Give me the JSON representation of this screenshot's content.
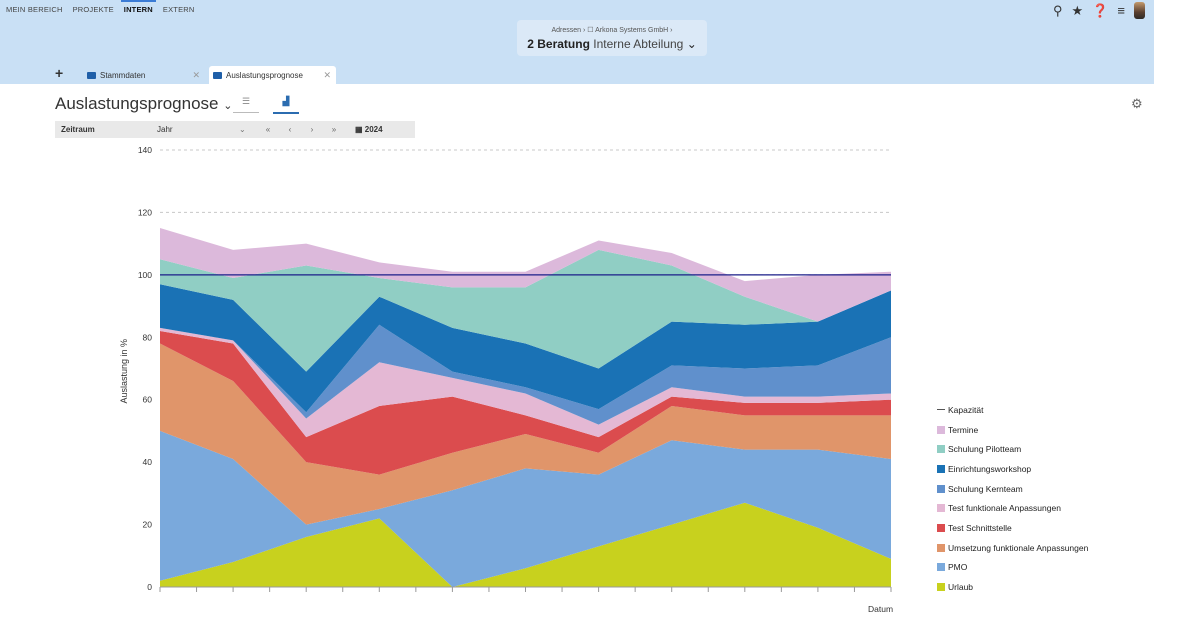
{
  "nav": {
    "items": [
      "MEIN BEREICH",
      "PROJEKTE",
      "INTERN",
      "EXTERN"
    ],
    "active": "INTERN"
  },
  "context": {
    "breadcrumb": "Adressen  ›  ☐ Arkona Systems GmbH  ›",
    "code": "2 Beratung",
    "name": "Interne Abteilung"
  },
  "tabs": [
    {
      "label": "Stammdaten"
    },
    {
      "label": "Auslastungsprognose"
    }
  ],
  "page": {
    "title": "Auslastungsprognose"
  },
  "filter": {
    "label": "Zeitraum",
    "value": "Jahr",
    "year": "2024"
  },
  "chart_data": {
    "type": "area",
    "stacked": true,
    "ylabel": "Auslastung in %",
    "xlabel": "Datum",
    "ylim": [
      0,
      140
    ],
    "yticks": [
      0,
      20,
      40,
      60,
      80,
      100,
      120,
      140
    ],
    "grid": true,
    "legend_position": "right",
    "capacity_line": {
      "name": "Kapazität",
      "value": 100,
      "color": "#1b1f8a"
    },
    "x": [
      1,
      2,
      3,
      4,
      5,
      6,
      7,
      8,
      9,
      10,
      11
    ],
    "series": [
      {
        "name": "Urlaub",
        "color": "#c8d11e",
        "values": [
          2,
          8,
          16,
          22,
          0,
          6,
          13,
          20,
          27,
          19,
          9
        ]
      },
      {
        "name": "PMO",
        "color": "#7aa9dc",
        "values": [
          48,
          33,
          4,
          3,
          31,
          32,
          23,
          27,
          17,
          25,
          32
        ]
      },
      {
        "name": "Umsetzung funktionale Anpassungen",
        "color": "#e0956a",
        "values": [
          28,
          25,
          20,
          11,
          12,
          11,
          7,
          11,
          11,
          11,
          14
        ]
      },
      {
        "name": "Test Schnittstelle",
        "color": "#db4c4e",
        "values": [
          4,
          12,
          8,
          22,
          18,
          6,
          5,
          3,
          4,
          4,
          5
        ]
      },
      {
        "name": "Test funktionale Anpassungen",
        "color": "#e4b8d4",
        "values": [
          1,
          1,
          6,
          14,
          6,
          7,
          4,
          3,
          2,
          2,
          2
        ]
      },
      {
        "name": "Schulung Kernteam",
        "color": "#6090cc",
        "values": [
          0,
          0,
          2,
          12,
          2,
          2,
          5,
          7,
          9,
          10,
          18
        ]
      },
      {
        "name": "Einrichtungsworkshop",
        "color": "#1a72b5",
        "values": [
          14,
          13,
          13,
          9,
          14,
          14,
          13,
          14,
          14,
          14,
          15
        ]
      },
      {
        "name": "Schulung Pilotteam",
        "color": "#90cec4",
        "values": [
          8,
          7,
          34,
          6,
          13,
          18,
          38,
          18,
          9,
          0,
          0
        ]
      },
      {
        "name": "Termine",
        "color": "#dcb9db",
        "values": [
          10,
          9,
          7,
          5,
          5,
          5,
          3,
          4,
          5,
          15,
          6
        ]
      }
    ]
  }
}
